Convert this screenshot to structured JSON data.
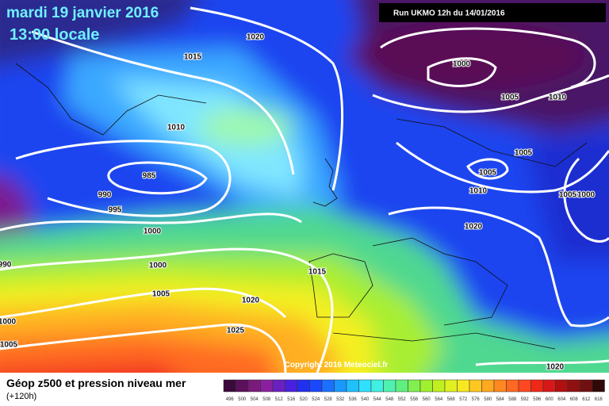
{
  "header": {
    "date": "mardi 19 janvier 2016",
    "time": "13:00 locale",
    "run": "Run UKMO 12h du 14/01/2016"
  },
  "isobar_labels": [
    "1020",
    "1015",
    "1000",
    "1005",
    "1010",
    "1010",
    "1005",
    "985",
    "1005",
    "990",
    "1010",
    "1005",
    "1000",
    "995",
    "1020",
    "1000",
    "990",
    "1000",
    "1015",
    "1005",
    "1020",
    "1000",
    "1025",
    "1005",
    "1020"
  ],
  "copyright": "Copyright 2016 Meteociel.fr",
  "footer": {
    "title": "Géop z500 et pression niveau mer",
    "lead": "(+120h)"
  },
  "scale": [
    496,
    500,
    504,
    508,
    512,
    516,
    520,
    524,
    528,
    532,
    536,
    540,
    544,
    548,
    552,
    556,
    560,
    564,
    568,
    572,
    576,
    580,
    584,
    588,
    592,
    596,
    600,
    604,
    608,
    612,
    616
  ]
}
